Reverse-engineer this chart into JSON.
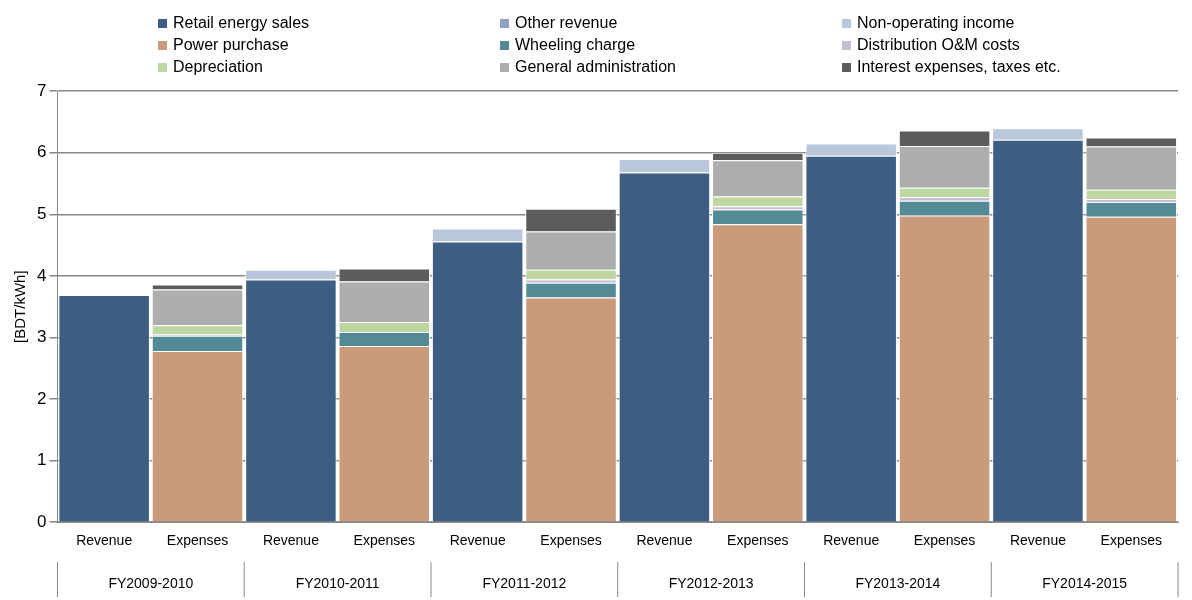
{
  "chart_data": {
    "type": "bar",
    "stacked": true,
    "ylabel": "[BDT/kWh]",
    "categories": [
      "Revenue",
      "Expenses",
      "Revenue",
      "Expenses",
      "Revenue",
      "Expenses",
      "Revenue",
      "Expenses",
      "Revenue",
      "Expenses",
      "Revenue",
      "Expenses"
    ],
    "annotations": [
      "FY2009-2010",
      "FY2010-2011",
      "FY2011-2012",
      "FY2012-2013",
      "FY2013-2014",
      "FY2014-2015"
    ],
    "series": [
      {
        "name": "Retail energy sales",
        "color": "#3d5e82",
        "values": [
          3.69,
          null,
          3.94,
          null,
          4.56,
          null,
          5.68,
          null,
          5.95,
          null,
          6.21,
          null
        ]
      },
      {
        "name": "Other revenue",
        "color": "#8fa2c4",
        "values": [
          null,
          null,
          null,
          null,
          null,
          null,
          null,
          null,
          null,
          null,
          null,
          null
        ]
      },
      {
        "name": "Non-operating income",
        "color": "#b8c7da",
        "values": [
          null,
          null,
          0.16,
          null,
          0.21,
          null,
          0.22,
          null,
          0.2,
          null,
          0.19,
          null
        ]
      },
      {
        "name": "Power purchase",
        "color": "#c99b7a",
        "values": [
          null,
          2.78,
          null,
          2.86,
          null,
          3.65,
          null,
          4.84,
          null,
          4.98,
          null,
          4.96
        ]
      },
      {
        "name": "Wheeling charge",
        "color": "#528a96",
        "values": [
          null,
          0.25,
          null,
          0.23,
          null,
          0.24,
          null,
          0.24,
          null,
          0.24,
          null,
          0.24
        ]
      },
      {
        "name": "Distribution O&M costs",
        "color": "#c8bcd8",
        "values": [
          null,
          0.02,
          null,
          null,
          null,
          0.05,
          null,
          0.05,
          null,
          0.06,
          null,
          0.05
        ]
      },
      {
        "name": "Depreciation",
        "color": "#bcd7a0",
        "values": [
          null,
          0.15,
          null,
          0.16,
          null,
          0.16,
          null,
          0.16,
          null,
          0.15,
          null,
          0.15
        ]
      },
      {
        "name": "General administration",
        "color": "#adadad",
        "values": [
          null,
          0.58,
          null,
          0.66,
          null,
          0.62,
          null,
          0.59,
          null,
          0.68,
          null,
          0.7
        ]
      },
      {
        "name": "Interest expenses, taxes etc.",
        "color": "#5c5c5c",
        "values": [
          null,
          0.08,
          null,
          0.21,
          null,
          0.37,
          null,
          0.12,
          null,
          0.25,
          null,
          0.15
        ]
      }
    ],
    "ylim": [
      0,
      7
    ],
    "yticks": [
      0,
      1,
      2,
      3,
      4,
      5,
      6,
      7
    ],
    "grid": "y",
    "legend": "top"
  }
}
